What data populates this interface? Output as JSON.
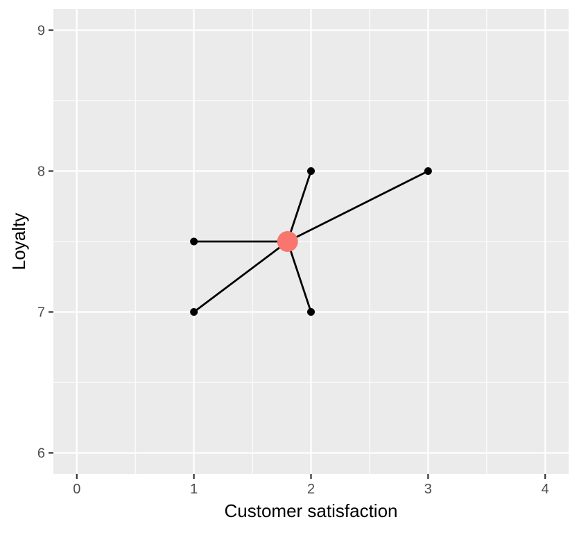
{
  "chart_data": {
    "type": "scatter",
    "title": "",
    "xlabel": "Customer satisfaction",
    "ylabel": "Loyalty",
    "xlim": [
      -0.2,
      4.2
    ],
    "ylim": [
      5.85,
      9.15
    ],
    "x_ticks": [
      0,
      1,
      2,
      3,
      4
    ],
    "y_ticks": [
      6,
      7,
      8,
      9
    ],
    "x_tick_labels": [
      "0",
      "1",
      "2",
      "3",
      "4"
    ],
    "y_tick_labels": [
      "6",
      "7",
      "8",
      "9"
    ],
    "grid": true,
    "panel_background": "#ebebeb",
    "grid_color": "#ffffff",
    "points": [
      {
        "x": 1,
        "y": 7.5
      },
      {
        "x": 1,
        "y": 7
      },
      {
        "x": 2,
        "y": 8
      },
      {
        "x": 2,
        "y": 7
      },
      {
        "x": 3,
        "y": 8
      }
    ],
    "centroid": {
      "x": 1.8,
      "y": 7.5
    },
    "segments_to_centroid": true,
    "point_color": "#000000",
    "line_color": "#000000",
    "centroid_color": "#f8766d"
  }
}
